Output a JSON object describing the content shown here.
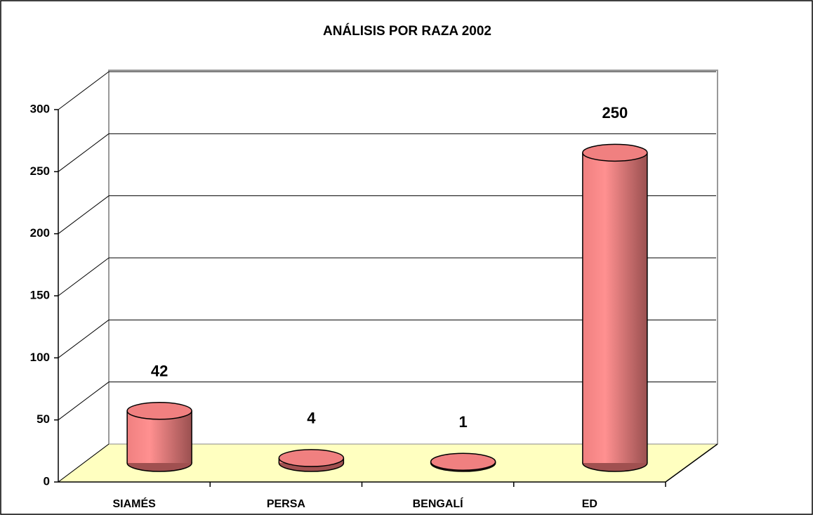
{
  "chart_data": {
    "type": "bar3d",
    "title": "ANÁLISIS POR RAZA 2002",
    "categories": [
      "SIAMÉS",
      "PERSA",
      "BENGALÍ",
      "ED"
    ],
    "values": [
      42,
      4,
      1,
      250
    ],
    "color": "#f08080",
    "ylim": [
      0,
      300
    ],
    "yticks": [
      0,
      50,
      100,
      150,
      200,
      250,
      300
    ],
    "grid": true
  }
}
